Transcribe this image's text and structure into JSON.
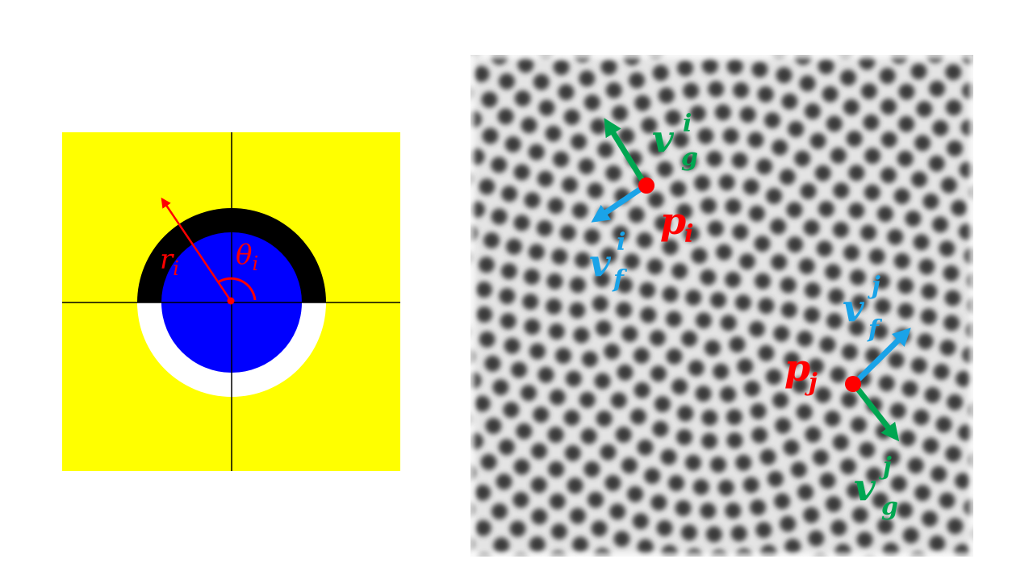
{
  "left_diagram": {
    "radius_label": "r",
    "radius_sub": "i",
    "angle_label": "θ",
    "angle_sub": "i",
    "colors": {
      "background": "#ffff00",
      "outer_top": "#000000",
      "outer_bottom": "#ffffff",
      "inner_disk": "#0000ff",
      "annotation": "#ff0000",
      "axes": "#000000"
    }
  },
  "right_diagram": {
    "point_i_label": "p",
    "point_i_sub": "i",
    "point_j_label": "p",
    "point_j_sub": "j",
    "vg_i_label": "v",
    "vg_i_sub": "g",
    "vg_i_sup": "i",
    "vf_i_label": "v",
    "vf_i_sub": "f",
    "vf_i_sup": "i",
    "vf_j_label": "v",
    "vf_j_sub": "f",
    "vf_j_sup": "j",
    "vg_j_label": "v",
    "vg_j_sub": "g",
    "vg_j_sup": "j",
    "colors": {
      "point": "#ff0000",
      "vg": "#00a651",
      "vf": "#1aa3e8",
      "pattern_bg": "#e4e4e4",
      "pattern_dot": "#3a3a3a"
    }
  }
}
